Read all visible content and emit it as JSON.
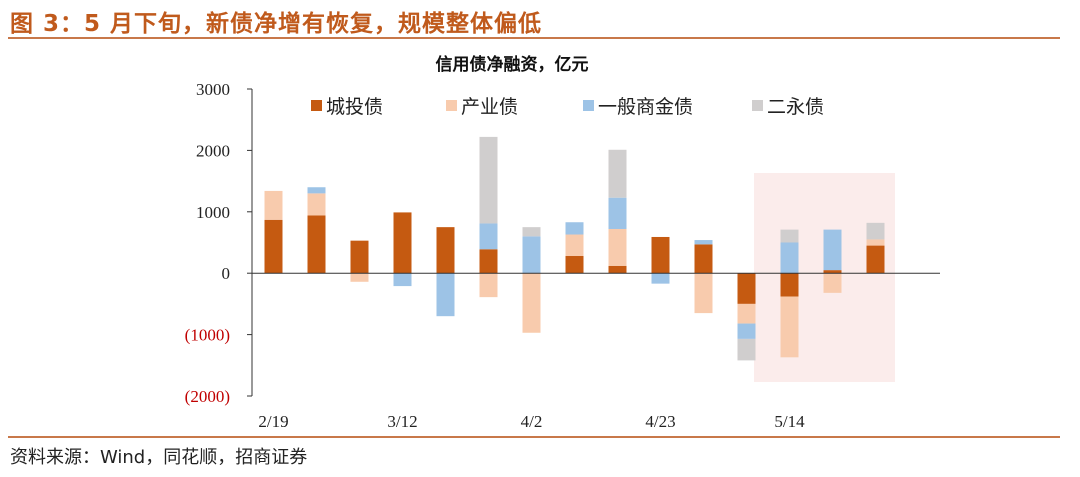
{
  "header": {
    "figure_title": "图 3：5 月下旬，新债净增有恢复，规模整体偏低"
  },
  "footer": {
    "source": "资料来源：Wind，同花顺，招商证券"
  },
  "colors": {
    "城投债": "#c55a11",
    "产业债": "#f8cbad",
    "一般商金债": "#9dc3e6",
    "二永债": "#d0cece",
    "highlight": "#fbeceb",
    "axis": "#333333",
    "negative_tick": "#c00000",
    "rule": "#c8784a"
  },
  "chart_data": {
    "type": "bar",
    "stacked": true,
    "title": "信用债净融资，亿元",
    "ylim": [
      -2000,
      3000
    ],
    "yticks": [
      3000,
      2000,
      1000,
      0,
      -1000,
      -2000
    ],
    "ytick_labels": [
      "3000",
      "2000",
      "1000",
      "0",
      "(1000)",
      "(2000)"
    ],
    "categories": [
      "2/19",
      "",
      "",
      "3/12",
      "",
      "",
      "4/2",
      "",
      "",
      "4/23",
      "",
      "",
      "5/14",
      "",
      "",
      ""
    ],
    "x_tick_labels": [
      "2/19",
      "3/12",
      "4/2",
      "4/23",
      "5/14"
    ],
    "series": [
      {
        "name": "城投债",
        "values": [
          870,
          940,
          530,
          990,
          750,
          390,
          0,
          280,
          120,
          590,
          470,
          -500,
          -380,
          50,
          450,
          0
        ]
      },
      {
        "name": "产业债",
        "values": [
          470,
          360,
          -140,
          0,
          0,
          -390,
          -970,
          350,
          600,
          0,
          -650,
          -320,
          -990,
          -320,
          100,
          0
        ]
      },
      {
        "name": "一般商金债",
        "values": [
          0,
          100,
          0,
          -210,
          -700,
          420,
          600,
          200,
          510,
          -170,
          70,
          -250,
          500,
          660,
          0,
          0
        ]
      },
      {
        "name": "二永债",
        "values": [
          0,
          0,
          0,
          0,
          0,
          1410,
          150,
          0,
          780,
          0,
          0,
          -350,
          210,
          0,
          270,
          0
        ]
      }
    ],
    "highlight_range": [
      12,
      14
    ],
    "legend_position": "top"
  }
}
